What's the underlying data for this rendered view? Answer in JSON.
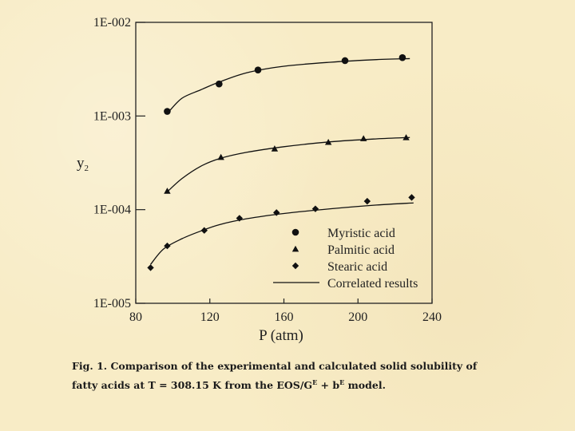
{
  "chart_data": {
    "type": "scatter",
    "xlabel": "P (atm)",
    "ylabel": "y",
    "ylabel_sub": "2",
    "xlim": [
      80,
      240
    ],
    "x_ticks": [
      80,
      120,
      160,
      200,
      240
    ],
    "ylim": [
      1e-05,
      0.01
    ],
    "y_scale": "log",
    "y_ticks": [
      1e-05,
      0.0001,
      0.001,
      0.01
    ],
    "y_tick_labels": [
      "1E-005",
      "1E-004",
      "1E-003",
      "1E-002"
    ],
    "legend_position": "bottom-right",
    "series": [
      {
        "name": "Myristic acid",
        "marker": "circle",
        "x": [
          97,
          125,
          146,
          193,
          224
        ],
        "y": [
          0.00112,
          0.0022,
          0.0031,
          0.0039,
          0.0042
        ]
      },
      {
        "name": "Palmitic acid",
        "marker": "triangle",
        "x": [
          97,
          126,
          155,
          184,
          203,
          226
        ],
        "y": [
          0.000158,
          0.000363,
          0.000447,
          0.000525,
          0.000575,
          0.000589
        ]
      },
      {
        "name": "Stearic acid",
        "marker": "diamond",
        "x": [
          88,
          97,
          117,
          136,
          156,
          177,
          205,
          229
        ],
        "y": [
          2.4e-05,
          4.1e-05,
          6e-05,
          8.1e-05,
          9.3e-05,
          0.000102,
          0.000123,
          0.000135
        ]
      }
    ],
    "correlated": {
      "name": "Correlated results",
      "curves": [
        {
          "x": [
            98,
            105,
            115,
            125,
            140,
            160,
            185,
            210,
            228
          ],
          "y": [
            0.00112,
            0.00155,
            0.0019,
            0.0023,
            0.0029,
            0.0034,
            0.00375,
            0.004,
            0.0041
          ]
        },
        {
          "x": [
            97,
            105,
            115,
            125,
            140,
            160,
            185,
            210,
            228
          ],
          "y": [
            0.000155,
            0.000215,
            0.00029,
            0.00035,
            0.00041,
            0.00047,
            0.00053,
            0.00057,
            0.00059
          ]
        },
        {
          "x": [
            88,
            95,
            105,
            115,
            125,
            140,
            160,
            185,
            210,
            230
          ],
          "y": [
            2.6e-05,
            3.8e-05,
            4.9e-05,
            5.9e-05,
            6.9e-05,
            8e-05,
            9.1e-05,
            0.000102,
            0.000112,
            0.000118
          ]
        }
      ]
    }
  },
  "caption": {
    "main": "Fig. 1. Comparison of the experimental and calculated solid solubility of fatty acids at T = 308.15 K from the EOS/G",
    "sup1": "E",
    "mid": " + b",
    "sup2": "E",
    "end": " model."
  }
}
